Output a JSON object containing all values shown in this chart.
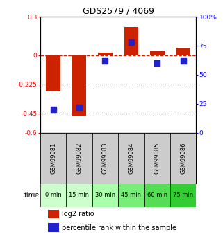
{
  "title": "GDS2579 / 4069",
  "samples": [
    "GSM99081",
    "GSM99082",
    "GSM99083",
    "GSM99084",
    "GSM99085",
    "GSM99086"
  ],
  "time_labels": [
    "0 min",
    "15 min",
    "30 min",
    "45 min",
    "60 min",
    "75 min"
  ],
  "time_colors": [
    "#ccffcc",
    "#ccffcc",
    "#aaffaa",
    "#77ee77",
    "#55dd55",
    "#33cc33"
  ],
  "log2_values": [
    -0.28,
    -0.47,
    0.02,
    0.22,
    0.04,
    0.06
  ],
  "percentile_values": [
    20,
    22,
    62,
    78,
    60,
    62
  ],
  "ylim_left": [
    -0.6,
    0.3
  ],
  "ylim_right": [
    0,
    100
  ],
  "yticks_left": [
    0.3,
    0.0,
    -0.225,
    -0.45,
    -0.6
  ],
  "yticks_right": [
    100,
    75,
    50,
    25,
    0
  ],
  "ytick_labels_left": [
    "0.3",
    "0",
    "-0.225",
    "-0.45",
    "-0.6"
  ],
  "ytick_labels_right": [
    "100%",
    "75",
    "50",
    "25",
    "0"
  ],
  "hlines": [
    -0.225,
    -0.45
  ],
  "bar_color": "#cc2200",
  "dot_color": "#2222cc",
  "dashed_line_color": "#cc2200",
  "bar_width": 0.55,
  "dot_size": 40,
  "sample_box_color": "#cccccc",
  "legend_bar_color": "#cc2200",
  "legend_dot_color": "#2222cc"
}
